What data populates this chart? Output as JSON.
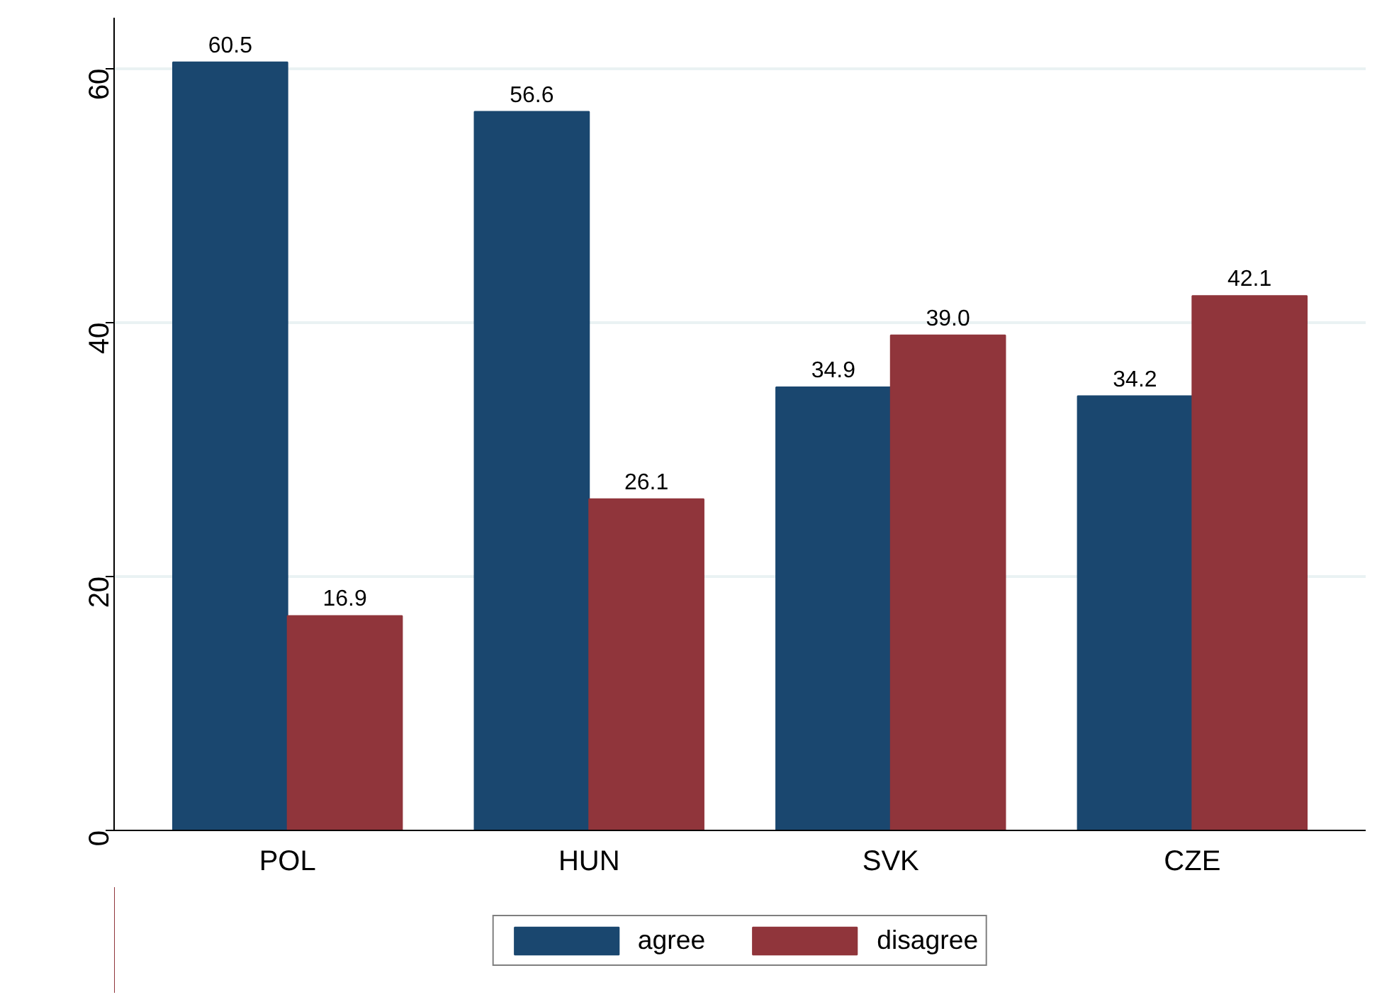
{
  "chart_data": {
    "type": "bar",
    "categories": [
      "POL",
      "HUN",
      "SVK",
      "CZE"
    ],
    "series": [
      {
        "name": "agree",
        "color": "#1a476f",
        "values": [
          60.5,
          56.6,
          34.9,
          34.2
        ],
        "value_labels": [
          "60.5",
          "56.6",
          "34.9",
          "34.2"
        ]
      },
      {
        "name": "disagree",
        "color": "#90353b",
        "values": [
          16.9,
          26.1,
          39.0,
          42.1
        ],
        "value_labels": [
          "16.9",
          "26.1",
          "39.0",
          "42.1"
        ]
      }
    ],
    "ylim": [
      0,
      64
    ],
    "yticks": [
      0,
      20,
      40,
      60
    ],
    "grid": "y",
    "legend": "bottom"
  }
}
